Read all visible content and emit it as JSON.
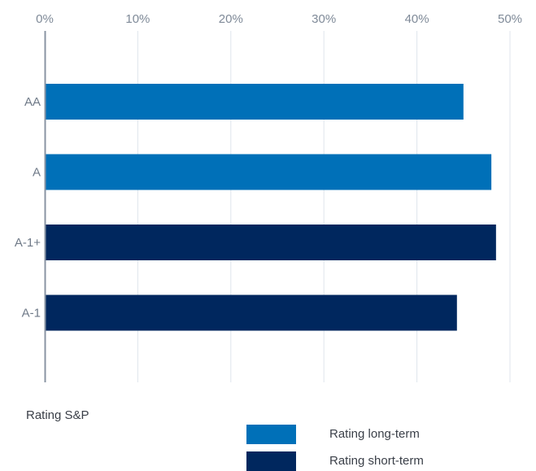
{
  "chart_data": {
    "type": "bar",
    "orientation": "horizontal",
    "categories": [
      "AA",
      "A",
      "A-1+",
      "A-1"
    ],
    "values": [
      45,
      48,
      48.5,
      44.3
    ],
    "bar_series": [
      "long",
      "long",
      "short",
      "short"
    ],
    "xlim": [
      0,
      50
    ],
    "xticks": [
      "0%",
      "10%",
      "20%",
      "30%",
      "40%",
      "50%"
    ],
    "x_axis_position": "top",
    "grid": true,
    "caption": "Rating S&P",
    "legend": [
      {
        "key": "long",
        "label": "Rating long-term",
        "color": "#0070b8"
      },
      {
        "key": "short",
        "label": "Rating short-term",
        "color": "#00275e"
      }
    ],
    "legend_position": "bottom"
  }
}
